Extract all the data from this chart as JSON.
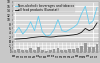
{
  "background_color": "#c8c8c8",
  "plot_bg_color": "#d8d8d8",
  "grid_color": "#ffffff",
  "n_points": 22,
  "volatile_line": [
    4.0,
    6.5,
    3.5,
    5.5,
    9.0,
    5.0,
    11.5,
    4.5,
    2.5,
    3.0,
    5.5,
    10.0,
    5.0,
    4.5,
    5.5,
    6.5,
    8.0,
    12.5,
    16.0,
    8.0,
    9.5,
    15.5
  ],
  "smooth_line": [
    1.2,
    1.3,
    1.4,
    1.5,
    1.8,
    2.0,
    2.2,
    2.3,
    2.2,
    2.1,
    2.2,
    2.5,
    2.6,
    2.7,
    2.9,
    3.1,
    3.4,
    4.2,
    6.0,
    5.0,
    5.8,
    8.5
  ],
  "bars": [
    0.5,
    0.7,
    0.4,
    0.6,
    1.1,
    0.6,
    1.4,
    0.5,
    0.3,
    0.4,
    0.7,
    1.2,
    0.6,
    0.6,
    0.7,
    0.9,
    1.1,
    1.8,
    2.5,
    1.3,
    1.5,
    2.4
  ],
  "volatile_color": "#66ccee",
  "smooth_color": "#111111",
  "bar_color": "#999999",
  "ylim_main": [
    0,
    18
  ],
  "yticks_main": [
    0,
    2,
    4,
    6,
    8,
    10,
    12,
    14,
    16,
    18
  ],
  "ylim_bar": [
    0,
    3
  ],
  "legend_volatile": "Non-alcoholic beverages and tobacco",
  "legend_smooth": "all food products (Eurostat)",
  "x_labels": [
    "90",
    "91",
    "92",
    "93",
    "94",
    "95",
    "96",
    "97",
    "98",
    "99",
    "00",
    "01",
    "02",
    "03",
    "04",
    "05",
    "06",
    "07",
    "08",
    "09",
    "10",
    "11"
  ]
}
